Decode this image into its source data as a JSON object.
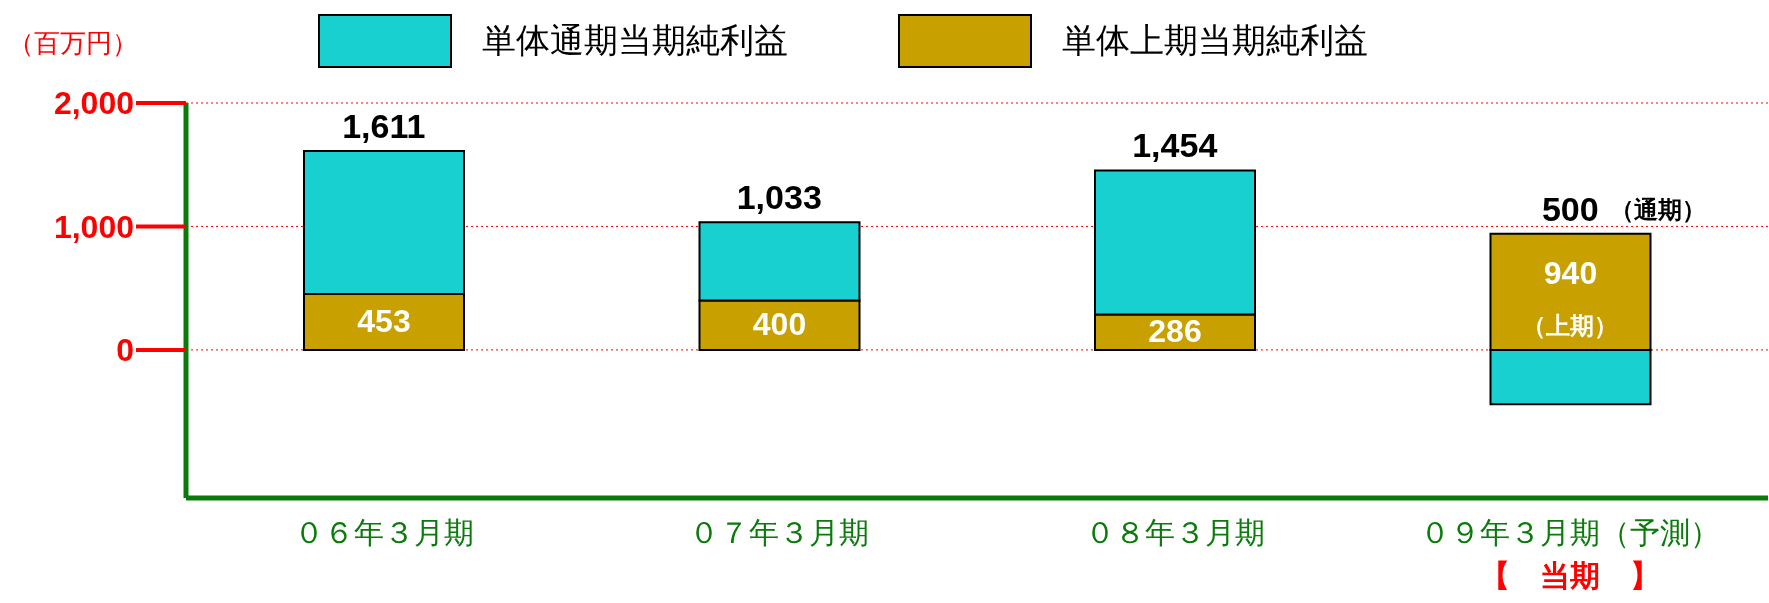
{
  "chart_data": {
    "type": "bar",
    "ylabel": "（百万円）",
    "categories": [
      "０６年３月期",
      "０７年３月期",
      "０８年３月期",
      "０９年３月期（予測）"
    ],
    "stacked": true,
    "series": [
      {
        "name": "単体上期当期純利益",
        "color": "#c8a000",
        "values": [
          453,
          400,
          286,
          940
        ],
        "value_labels": [
          "453",
          "400",
          "286",
          "940"
        ]
      },
      {
        "name": "単体通期当期純利益",
        "color": "#19d0d0",
        "values": [
          1158,
          633,
          1168,
          -440
        ]
      }
    ],
    "totals": [
      "1,611",
      "1,033",
      "1,454",
      "500"
    ],
    "ylim": [
      -1200,
      2000
    ],
    "yticks": [
      0,
      {
        "value": 1000,
        "label": "1,000"
      },
      {
        "value": 2000,
        "label": "2,000"
      }
    ],
    "grid": "y",
    "legend": "top",
    "annotations": [
      "（上期）",
      "（通期）",
      "【　当期　】"
    ]
  }
}
